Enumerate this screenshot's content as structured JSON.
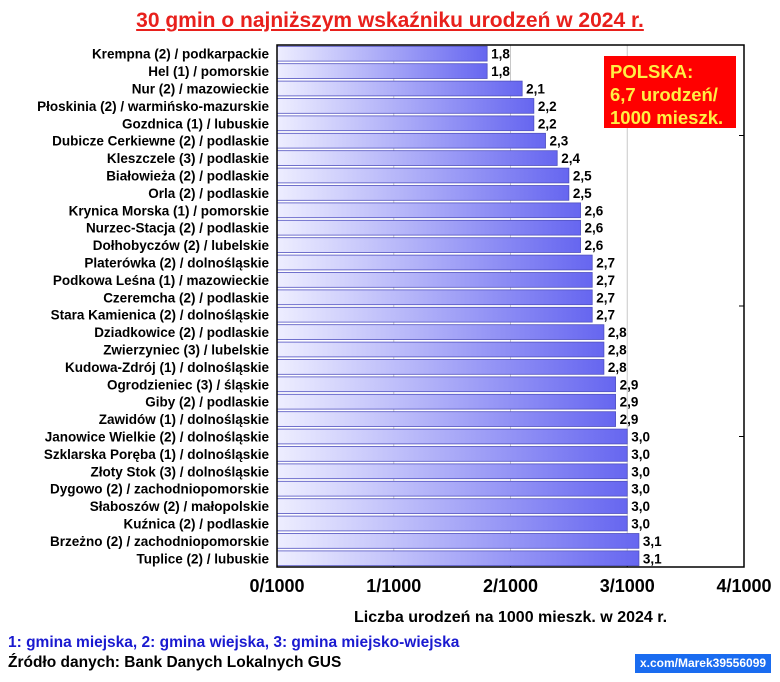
{
  "chart_data": {
    "type": "bar",
    "orientation": "horizontal",
    "title": "30 gmin o najniższym wskaźniku urodzeń w 2024 r.",
    "xlabel": "Liczba urodzeń na 1000 mieszk. w 2024 r.",
    "xlim": [
      0,
      4
    ],
    "xticks": [
      "0/1000",
      "1/1000",
      "2/1000",
      "3/1000",
      "4/1000"
    ],
    "grid": true,
    "bar_color_start": "#eeeeff",
    "bar_color_end": "#6666f0",
    "categories": [
      "Krempna (2) / podkarpackie",
      "Hel (1) / pomorskie",
      "Nur (2) / mazowieckie",
      "Płoskinia (2) / warmińsko-mazurskie",
      "Gozdnica (1) / lubuskie",
      "Dubicze Cerkiewne (2) / podlaskie",
      "Kleszczele (3) / podlaskie",
      "Białowieża (2) / podlaskie",
      "Orla (2) / podlaskie",
      "Krynica Morska (1) / pomorskie",
      "Nurzec-Stacja (2) / podlaskie",
      "Dołhobyczów (2) / lubelskie",
      "Platerówka (2) / dolnośląskie",
      "Podkowa Leśna (1) / mazowieckie",
      "Czeremcha (2) / podlaskie",
      "Stara Kamienica (2) / dolnośląskie",
      "Dziadkowice (2) / podlaskie",
      "Zwierzyniec (3) / lubelskie",
      "Kudowa-Zdrój (1) / dolnośląskie",
      "Ogrodzieniec (3) / śląskie",
      "Giby (2) / podlaskie",
      "Zawidów (1) / dolnośląskie",
      "Janowice Wielkie (2) / dolnośląskie",
      "Szklarska Poręba (1) / dolnośląskie",
      "Złoty Stok (3) / dolnośląskie",
      "Dygowo (2) / zachodniopomorskie",
      "Słaboszów (2) / małopolskie",
      "Kuźnica (2) / podlaskie",
      "Brzeżno (2) / zachodniopomorskie",
      "Tuplice (2) / lubuskie"
    ],
    "values": [
      1.8,
      1.8,
      2.1,
      2.2,
      2.2,
      2.3,
      2.4,
      2.5,
      2.5,
      2.6,
      2.6,
      2.6,
      2.7,
      2.7,
      2.7,
      2.7,
      2.8,
      2.8,
      2.8,
      2.9,
      2.9,
      2.9,
      3.0,
      3.0,
      3.0,
      3.0,
      3.0,
      3.0,
      3.1,
      3.1
    ],
    "data_labels": [
      "1,8",
      "1,8",
      "2,1",
      "2,2",
      "2,2",
      "2,3",
      "2,4",
      "2,5",
      "2,5",
      "2,6",
      "2,6",
      "2,6",
      "2,7",
      "2,7",
      "2,7",
      "2,7",
      "2,8",
      "2,8",
      "2,8",
      "2,9",
      "2,9",
      "2,9",
      "3,0",
      "3,0",
      "3,0",
      "3,0",
      "3,0",
      "3,0",
      "3,1",
      "3,1"
    ],
    "annotation": {
      "lines": [
        "POLSKA:",
        "6,7 urodzeń/",
        "1000 mieszk."
      ],
      "background": "#ff0000",
      "color": "#ffee44"
    }
  },
  "footer": {
    "legend": "1: gmina miejska, 2: gmina wiejska, 3: gmina miejsko-wiejska",
    "source": "Źródło danych: Bank Danych Lokalnych GUS",
    "credit": "x.com/Marek39556099"
  }
}
